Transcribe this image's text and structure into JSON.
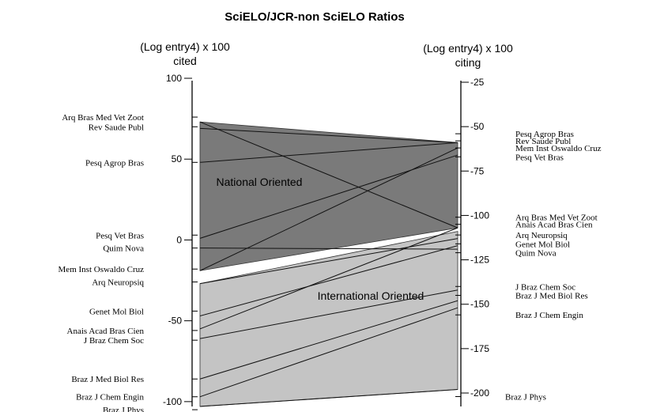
{
  "chart_data": {
    "type": "line",
    "title": "SciELO/JCR-non SciELO Ratios",
    "left_axis": {
      "label_line1": "(Log entry4) x 100",
      "label_line2": "cited",
      "ylim": [
        -103,
        100
      ],
      "ticks": [
        100,
        50,
        0,
        -50,
        -100
      ]
    },
    "right_axis": {
      "label_line1": "(Log entry4) x 100",
      "label_line2": "citing",
      "ylim": [
        -201,
        -25
      ],
      "ticks": [
        -25,
        -50,
        -75,
        -100,
        -125,
        -150,
        -175,
        -200
      ]
    },
    "regions": [
      {
        "name": "National Oriented",
        "color": "#7a7a7a",
        "left": [
          73,
          -19
        ],
        "right": [
          -59,
          -107
        ]
      },
      {
        "name": "International Oriented",
        "color": "#c4c4c4",
        "left": [
          -27,
          -103
        ],
        "right": [
          -109,
          -198
        ]
      }
    ],
    "left_labels": [
      {
        "text": "Arq Bras Med Vet Zoot",
        "value": 76
      },
      {
        "text": "Rev Saude Publ",
        "value": 70
      },
      {
        "text": "Pesq Agrop Bras",
        "value": 48
      },
      {
        "text": "Pesq Vet Bras",
        "value": 3
      },
      {
        "text": "Quim Nova",
        "value": -5
      },
      {
        "text": "Mem Inst Oswaldo Cruz",
        "value": -18
      },
      {
        "text": "Arq Neuropsiq",
        "value": -26
      },
      {
        "text": "Genet Mol Biol",
        "value": -44
      },
      {
        "text": "Anais Acad Bras Cien",
        "value": -56
      },
      {
        "text": "J Braz Chem Soc",
        "value": -62
      },
      {
        "text": "Braz J Med Biol Res",
        "value": -86
      },
      {
        "text": "Braz J Chem Engin",
        "value": -97
      },
      {
        "text": "Braz J Phys",
        "value": -105
      }
    ],
    "right_labels": [
      {
        "text": "Pesq Agrop Bras",
        "value": -54
      },
      {
        "text": "Rev Saude Publ",
        "value": -58
      },
      {
        "text": "Mem Inst Oswaldo Cruz",
        "value": -62
      },
      {
        "text": "Pesq Vet Bras",
        "value": -67
      },
      {
        "text": "Arq Bras Med Vet Zoot",
        "value": -101
      },
      {
        "text": "Anais Acad Bras Cien",
        "value": -105
      },
      {
        "text": "Arq Neuropsiq",
        "value": -111
      },
      {
        "text": "Genet Mol Biol",
        "value": -116
      },
      {
        "text": "Quim Nova",
        "value": -121
      },
      {
        "text": "J Braz Chem Soc",
        "value": -140
      },
      {
        "text": "Braz J Med Biol Res",
        "value": -145
      },
      {
        "text": "Braz J Chem Engin",
        "value": -156
      },
      {
        "text": "Braz J Phys",
        "value": -202
      }
    ],
    "series": [
      {
        "name": "Arq Bras Med Vet Zoot",
        "values": [
          73,
          -107
        ]
      },
      {
        "name": "Rev Saude Publ",
        "values": [
          69,
          -59
        ]
      },
      {
        "name": "Pesq Agrop Bras",
        "values": [
          48,
          -59
        ]
      },
      {
        "name": "Pesq Vet Bras",
        "values": [
          1,
          -66
        ]
      },
      {
        "name": "Quim Nova",
        "values": [
          -5,
          -119
        ]
      },
      {
        "name": "Mem Inst Oswaldo Cruz",
        "values": [
          -19,
          -62
        ]
      },
      {
        "name": "Arq Neuropsiq",
        "values": [
          -27,
          -113
        ]
      },
      {
        "name": "Genet Mol Biol",
        "values": [
          -47,
          -117
        ]
      },
      {
        "name": "Anais Acad Bras Cien",
        "values": [
          -55,
          -107
        ]
      },
      {
        "name": "J Braz Chem Soc",
        "values": [
          -61,
          -142
        ]
      },
      {
        "name": "Braz J Med Biol Res",
        "values": [
          -86,
          -148
        ]
      },
      {
        "name": "Braz J Chem Engin",
        "values": [
          -97,
          -152
        ]
      },
      {
        "name": "Braz J Phys",
        "values": [
          -103,
          -198
        ]
      }
    ]
  }
}
